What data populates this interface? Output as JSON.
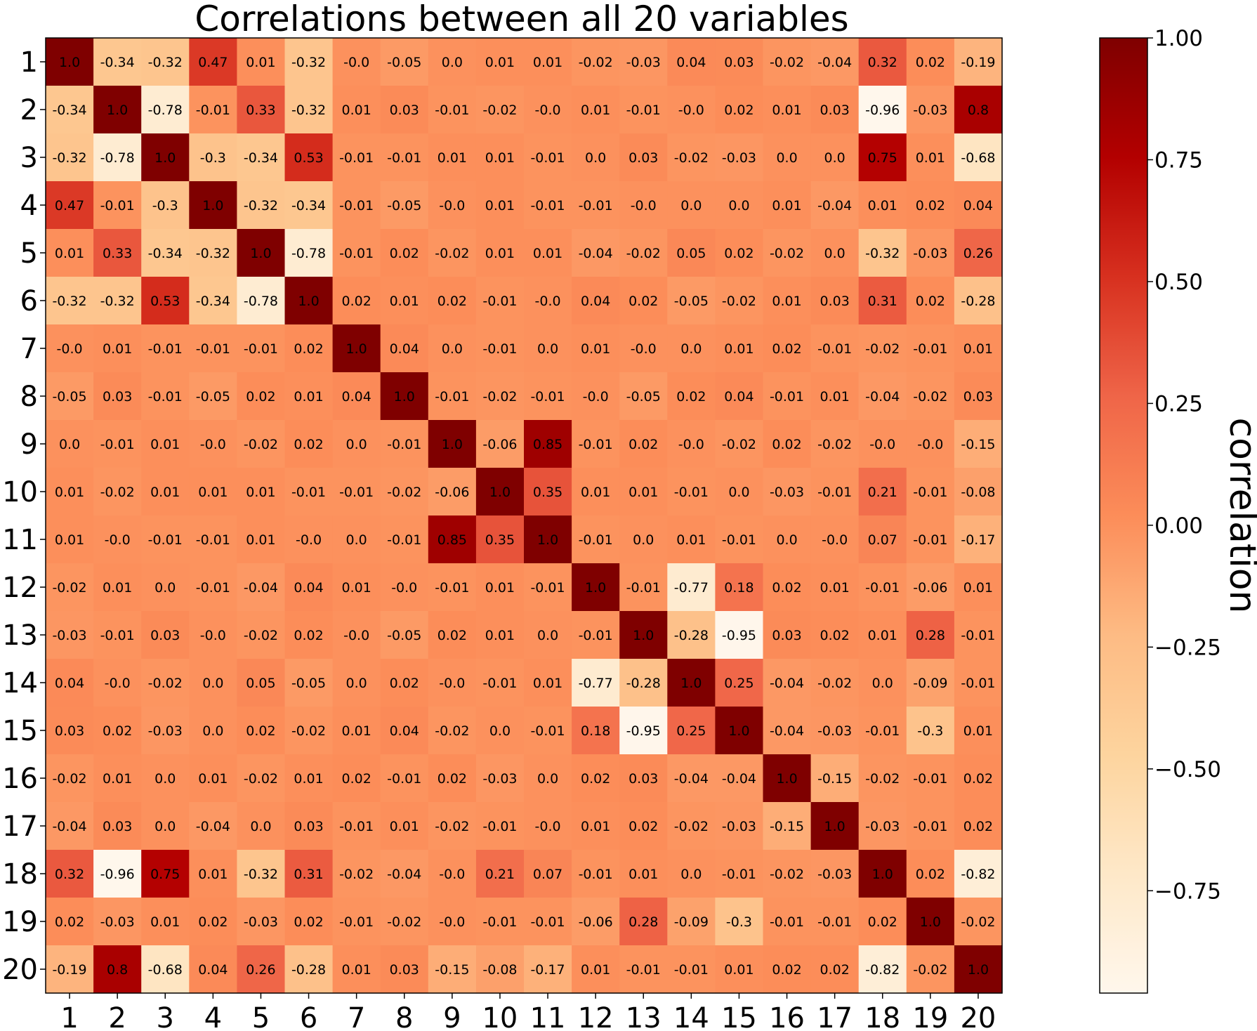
{
  "chart_data": {
    "type": "heatmap",
    "title": "Correlations between all 20 variables",
    "x_categories": [
      "1",
      "2",
      "3",
      "4",
      "5",
      "6",
      "7",
      "8",
      "9",
      "10",
      "11",
      "12",
      "13",
      "14",
      "15",
      "16",
      "17",
      "18",
      "19",
      "20"
    ],
    "y_categories": [
      "1",
      "2",
      "3",
      "4",
      "5",
      "6",
      "7",
      "8",
      "9",
      "10",
      "11",
      "12",
      "13",
      "14",
      "15",
      "16",
      "17",
      "18",
      "19",
      "20"
    ],
    "values": [
      [
        1.0,
        -0.34,
        -0.32,
        0.47,
        0.01,
        -0.32,
        -0.0,
        -0.05,
        0.0,
        0.01,
        0.01,
        -0.02,
        -0.03,
        0.04,
        0.03,
        -0.02,
        -0.04,
        0.32,
        0.02,
        -0.19
      ],
      [
        -0.34,
        1.0,
        -0.78,
        -0.01,
        0.33,
        -0.32,
        0.01,
        0.03,
        -0.01,
        -0.02,
        -0.0,
        0.01,
        -0.01,
        -0.0,
        0.02,
        0.01,
        0.03,
        -0.96,
        -0.03,
        0.8
      ],
      [
        -0.32,
        -0.78,
        1.0,
        -0.3,
        -0.34,
        0.53,
        -0.01,
        -0.01,
        0.01,
        0.01,
        -0.01,
        0.0,
        0.03,
        -0.02,
        -0.03,
        0.0,
        0.0,
        0.75,
        0.01,
        -0.68
      ],
      [
        0.47,
        -0.01,
        -0.3,
        1.0,
        -0.32,
        -0.34,
        -0.01,
        -0.05,
        -0.0,
        0.01,
        -0.01,
        -0.01,
        -0.0,
        0.0,
        0.0,
        0.01,
        -0.04,
        0.01,
        0.02,
        0.04
      ],
      [
        0.01,
        0.33,
        -0.34,
        -0.32,
        1.0,
        -0.78,
        -0.01,
        0.02,
        -0.02,
        0.01,
        0.01,
        -0.04,
        -0.02,
        0.05,
        0.02,
        -0.02,
        0.0,
        -0.32,
        -0.03,
        0.26
      ],
      [
        -0.32,
        -0.32,
        0.53,
        -0.34,
        -0.78,
        1.0,
        0.02,
        0.01,
        0.02,
        -0.01,
        -0.0,
        0.04,
        0.02,
        -0.05,
        -0.02,
        0.01,
        0.03,
        0.31,
        0.02,
        -0.28
      ],
      [
        -0.0,
        0.01,
        -0.01,
        -0.01,
        -0.01,
        0.02,
        1.0,
        0.04,
        0.0,
        -0.01,
        0.0,
        0.01,
        -0.0,
        0.0,
        0.01,
        0.02,
        -0.01,
        -0.02,
        -0.01,
        0.01
      ],
      [
        -0.05,
        0.03,
        -0.01,
        -0.05,
        0.02,
        0.01,
        0.04,
        1.0,
        -0.01,
        -0.02,
        -0.01,
        -0.0,
        -0.05,
        0.02,
        0.04,
        -0.01,
        0.01,
        -0.04,
        -0.02,
        0.03
      ],
      [
        0.0,
        -0.01,
        0.01,
        -0.0,
        -0.02,
        0.02,
        0.0,
        -0.01,
        1.0,
        -0.06,
        0.85,
        -0.01,
        0.02,
        -0.0,
        -0.02,
        0.02,
        -0.02,
        -0.0,
        -0.0,
        -0.15
      ],
      [
        0.01,
        -0.02,
        0.01,
        0.01,
        0.01,
        -0.01,
        -0.01,
        -0.02,
        -0.06,
        1.0,
        0.35,
        0.01,
        0.01,
        -0.01,
        0.0,
        -0.03,
        -0.01,
        0.21,
        -0.01,
        -0.08
      ],
      [
        0.01,
        -0.0,
        -0.01,
        -0.01,
        0.01,
        -0.0,
        0.0,
        -0.01,
        0.85,
        0.35,
        1.0,
        -0.01,
        0.0,
        0.01,
        -0.01,
        0.0,
        -0.0,
        0.07,
        -0.01,
        -0.17
      ],
      [
        -0.02,
        0.01,
        0.0,
        -0.01,
        -0.04,
        0.04,
        0.01,
        -0.0,
        -0.01,
        0.01,
        -0.01,
        1.0,
        -0.01,
        -0.77,
        0.18,
        0.02,
        0.01,
        -0.01,
        -0.06,
        0.01
      ],
      [
        -0.03,
        -0.01,
        0.03,
        -0.0,
        -0.02,
        0.02,
        -0.0,
        -0.05,
        0.02,
        0.01,
        0.0,
        -0.01,
        1.0,
        -0.28,
        -0.95,
        0.03,
        0.02,
        0.01,
        0.28,
        -0.01
      ],
      [
        0.04,
        -0.0,
        -0.02,
        0.0,
        0.05,
        -0.05,
        0.0,
        0.02,
        -0.0,
        -0.01,
        0.01,
        -0.77,
        -0.28,
        1.0,
        0.25,
        -0.04,
        -0.02,
        0.0,
        -0.09,
        -0.01
      ],
      [
        0.03,
        0.02,
        -0.03,
        0.0,
        0.02,
        -0.02,
        0.01,
        0.04,
        -0.02,
        0.0,
        -0.01,
        0.18,
        -0.95,
        0.25,
        1.0,
        -0.04,
        -0.03,
        -0.01,
        -0.3,
        0.01
      ],
      [
        -0.02,
        0.01,
        0.0,
        0.01,
        -0.02,
        0.01,
        0.02,
        -0.01,
        0.02,
        -0.03,
        0.0,
        0.02,
        0.03,
        -0.04,
        -0.04,
        1.0,
        -0.15,
        -0.02,
        -0.01,
        0.02
      ],
      [
        -0.04,
        0.03,
        0.0,
        -0.04,
        0.0,
        0.03,
        -0.01,
        0.01,
        -0.02,
        -0.01,
        -0.0,
        0.01,
        0.02,
        -0.02,
        -0.03,
        -0.15,
        1.0,
        -0.03,
        -0.01,
        0.02
      ],
      [
        0.32,
        -0.96,
        0.75,
        0.01,
        -0.32,
        0.31,
        -0.02,
        -0.04,
        -0.0,
        0.21,
        0.07,
        -0.01,
        0.01,
        0.0,
        -0.01,
        -0.02,
        -0.03,
        1.0,
        0.02,
        -0.82
      ],
      [
        0.02,
        -0.03,
        0.01,
        0.02,
        -0.03,
        0.02,
        -0.01,
        -0.02,
        -0.0,
        -0.01,
        -0.01,
        -0.06,
        0.28,
        -0.09,
        -0.3,
        -0.01,
        -0.01,
        0.02,
        1.0,
        -0.02
      ],
      [
        -0.19,
        0.8,
        -0.68,
        0.04,
        0.26,
        -0.28,
        0.01,
        0.03,
        -0.15,
        -0.08,
        -0.17,
        0.01,
        -0.01,
        -0.01,
        0.01,
        0.02,
        0.02,
        -0.82,
        -0.02,
        1.0
      ]
    ],
    "colormap": "OrRd",
    "color_range": [
      -0.96,
      1.0
    ],
    "colorbar": {
      "label": "correlation",
      "ticks": [
        1.0,
        0.75,
        0.5,
        0.25,
        0.0,
        -0.25,
        -0.5,
        -0.75
      ],
      "tick_labels": [
        "1.00",
        "0.75",
        "0.50",
        "0.25",
        "0.00",
        "−0.25",
        "−0.50",
        "−0.75"
      ],
      "placement": "right"
    },
    "grid": false
  }
}
